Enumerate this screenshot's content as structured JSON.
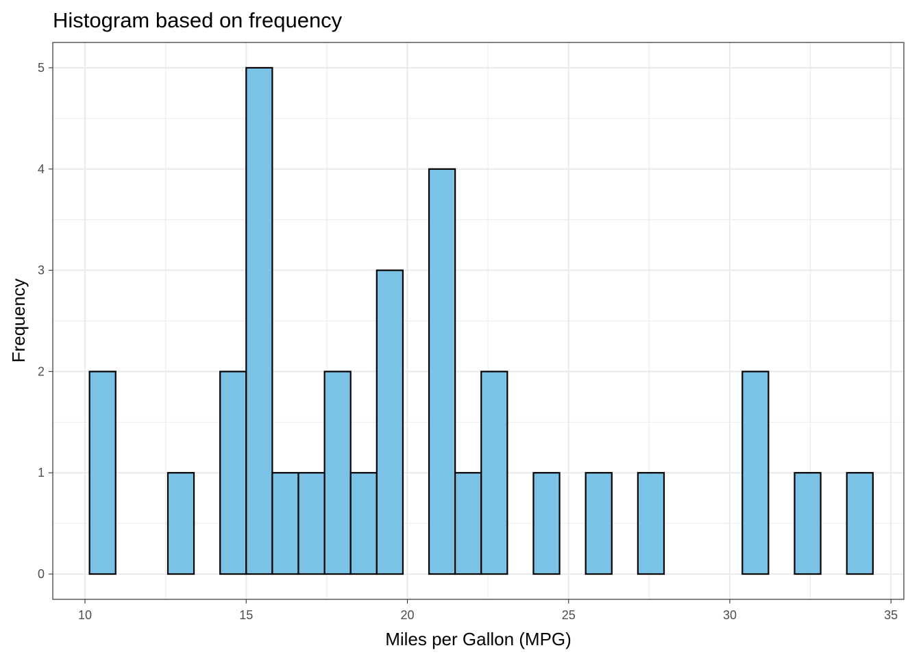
{
  "chart_data": {
    "type": "bar",
    "subtype": "histogram",
    "title": "Histogram based on frequency",
    "xlabel": "Miles per Gallon (MPG)",
    "ylabel": "Frequency",
    "xlim": [
      9.0,
      35.4
    ],
    "ylim": [
      -0.25,
      5.25
    ],
    "x_ticks": [
      10,
      15,
      20,
      25,
      30,
      35
    ],
    "y_ticks": [
      0,
      1,
      2,
      3,
      4,
      5
    ],
    "grid": true,
    "legend": "none",
    "bin_width": 0.81,
    "bins": [
      {
        "x_min": 10.14,
        "x_max": 10.95,
        "count": 2
      },
      {
        "x_min": 10.95,
        "x_max": 11.76,
        "count": 0
      },
      {
        "x_min": 11.76,
        "x_max": 12.57,
        "count": 0
      },
      {
        "x_min": 12.57,
        "x_max": 13.38,
        "count": 1
      },
      {
        "x_min": 13.38,
        "x_max": 14.19,
        "count": 0
      },
      {
        "x_min": 14.19,
        "x_max": 15.0,
        "count": 2
      },
      {
        "x_min": 15.0,
        "x_max": 15.81,
        "count": 5
      },
      {
        "x_min": 15.81,
        "x_max": 16.62,
        "count": 1
      },
      {
        "x_min": 16.62,
        "x_max": 17.43,
        "count": 1
      },
      {
        "x_min": 17.43,
        "x_max": 18.24,
        "count": 2
      },
      {
        "x_min": 18.24,
        "x_max": 19.05,
        "count": 1
      },
      {
        "x_min": 19.05,
        "x_max": 19.86,
        "count": 3
      },
      {
        "x_min": 19.86,
        "x_max": 20.67,
        "count": 0
      },
      {
        "x_min": 20.67,
        "x_max": 21.48,
        "count": 4
      },
      {
        "x_min": 21.48,
        "x_max": 22.29,
        "count": 1
      },
      {
        "x_min": 22.29,
        "x_max": 23.1,
        "count": 2
      },
      {
        "x_min": 23.1,
        "x_max": 23.91,
        "count": 0
      },
      {
        "x_min": 23.91,
        "x_max": 24.72,
        "count": 1
      },
      {
        "x_min": 24.72,
        "x_max": 25.53,
        "count": 0
      },
      {
        "x_min": 25.53,
        "x_max": 26.34,
        "count": 1
      },
      {
        "x_min": 26.34,
        "x_max": 27.15,
        "count": 0
      },
      {
        "x_min": 27.15,
        "x_max": 27.96,
        "count": 1
      },
      {
        "x_min": 27.96,
        "x_max": 28.77,
        "count": 0
      },
      {
        "x_min": 28.77,
        "x_max": 29.58,
        "count": 0
      },
      {
        "x_min": 29.58,
        "x_max": 30.39,
        "count": 0
      },
      {
        "x_min": 30.39,
        "x_max": 31.2,
        "count": 2
      },
      {
        "x_min": 31.2,
        "x_max": 32.01,
        "count": 0
      },
      {
        "x_min": 32.01,
        "x_max": 32.82,
        "count": 1
      },
      {
        "x_min": 32.82,
        "x_max": 33.63,
        "count": 0
      },
      {
        "x_min": 33.63,
        "x_max": 34.44,
        "count": 1
      }
    ],
    "colors": {
      "bar_fill": "#7BC3E6",
      "bar_stroke": "#000000",
      "grid": "#EBEBEB",
      "panel_border": "#333333",
      "tick_text": "#4D4D4D"
    }
  }
}
